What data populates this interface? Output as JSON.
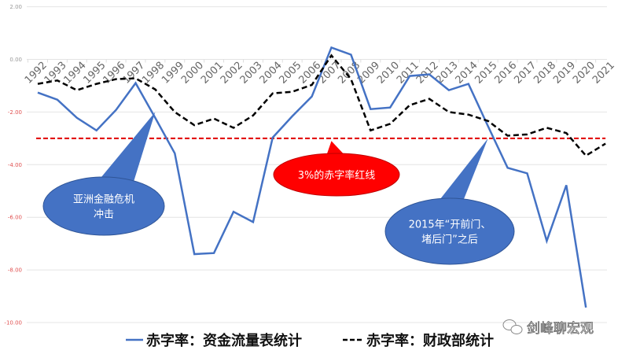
{
  "chart_data": {
    "type": "line",
    "title": "",
    "xlabel": "",
    "ylabel": "",
    "ylim": [
      -10,
      2
    ],
    "yticks": [
      2,
      0,
      -2,
      -4,
      -6,
      -8,
      -10
    ],
    "ytick_labels": [
      "2.00",
      "0.00",
      "-2.00",
      "-4.00",
      "-6.00",
      "-8.00",
      "-10.00"
    ],
    "grid": true,
    "legend_position": "bottom",
    "x": [
      "1992",
      "1993",
      "1994",
      "1995",
      "1996",
      "1997",
      "1998",
      "1999",
      "2000",
      "2001",
      "2002",
      "2003",
      "2004",
      "2005",
      "2006",
      "2007",
      "2008",
      "2009",
      "2010",
      "2011",
      "2012",
      "2013",
      "2014",
      "2015",
      "2016",
      "2017",
      "2018",
      "2019",
      "2020",
      "2021"
    ],
    "series": [
      {
        "name": "赤字率：资金流量表统计",
        "color": "#4472c4",
        "style": "solid",
        "values": [
          -1.26,
          -1.53,
          -2.22,
          -2.7,
          -1.92,
          -0.9,
          -2.22,
          -3.57,
          -7.4,
          -7.36,
          -5.79,
          -6.18,
          -2.97,
          -2.16,
          -1.41,
          0.45,
          0.18,
          -1.89,
          -1.83,
          -0.63,
          -0.57,
          -1.17,
          -0.93,
          -2.54,
          -4.12,
          -4.33,
          -6.9,
          -4.78,
          -9.43,
          null
        ]
      },
      {
        "name": "赤字率：财政部统计",
        "color": "#000000",
        "style": "dashed",
        "values": [
          -0.93,
          -0.8,
          -1.17,
          -0.93,
          -0.75,
          -0.72,
          -1.14,
          -2.0,
          -2.5,
          -2.25,
          -2.6,
          -2.13,
          -1.29,
          -1.23,
          -0.97,
          0.15,
          -0.75,
          -2.7,
          -2.45,
          -1.74,
          -1.5,
          -2.0,
          -2.1,
          -2.34,
          -2.9,
          -2.85,
          -2.6,
          -2.8,
          -3.66,
          -3.2
        ]
      }
    ],
    "reference_line": {
      "value": -3,
      "color": "#e00000",
      "style": "dashed"
    },
    "annotations": [
      {
        "lines": [
          "亚洲金融危机",
          "冲击"
        ],
        "color": "#4472c4",
        "points_to": {
          "x": "1998",
          "y": -2.0
        }
      },
      {
        "lines": [
          "3%的赤字率红线"
        ],
        "color": "#ff0000",
        "points_to": {
          "x": "2007",
          "y": -3.1
        }
      },
      {
        "lines": [
          "2015年“开前门、",
          "堵后门”之后"
        ],
        "color": "#4472c4",
        "points_to": {
          "x": "2015",
          "y": -3.0
        }
      }
    ]
  },
  "watermark": "剑峰聊宏观"
}
